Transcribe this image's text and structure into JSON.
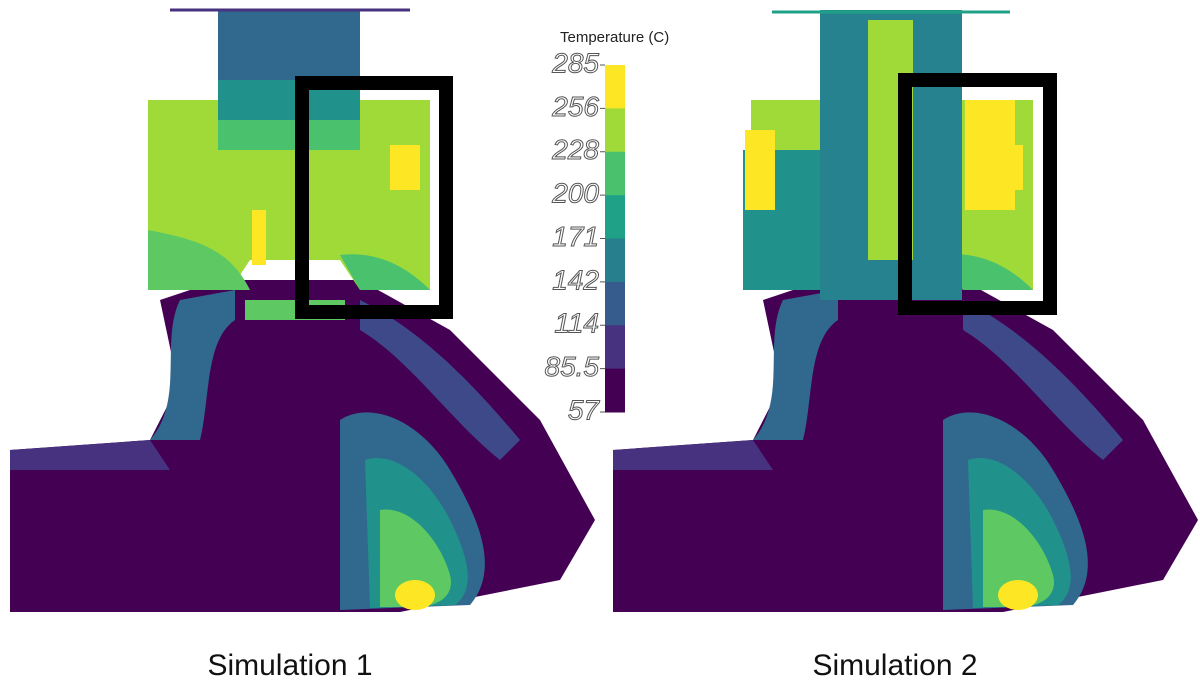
{
  "colorbar": {
    "title": "Temperature (C)",
    "ticks": [
      285,
      256,
      228,
      200,
      171,
      142,
      114,
      85.5,
      57
    ],
    "colors": [
      "#fde725",
      "#a0da39",
      "#4ac16d",
      "#1fa187",
      "#277f8e",
      "#365c8d",
      "#46327e",
      "#440154"
    ]
  },
  "panels": [
    {
      "caption": "Simulation 1"
    },
    {
      "caption": "Simulation 2"
    }
  ]
}
